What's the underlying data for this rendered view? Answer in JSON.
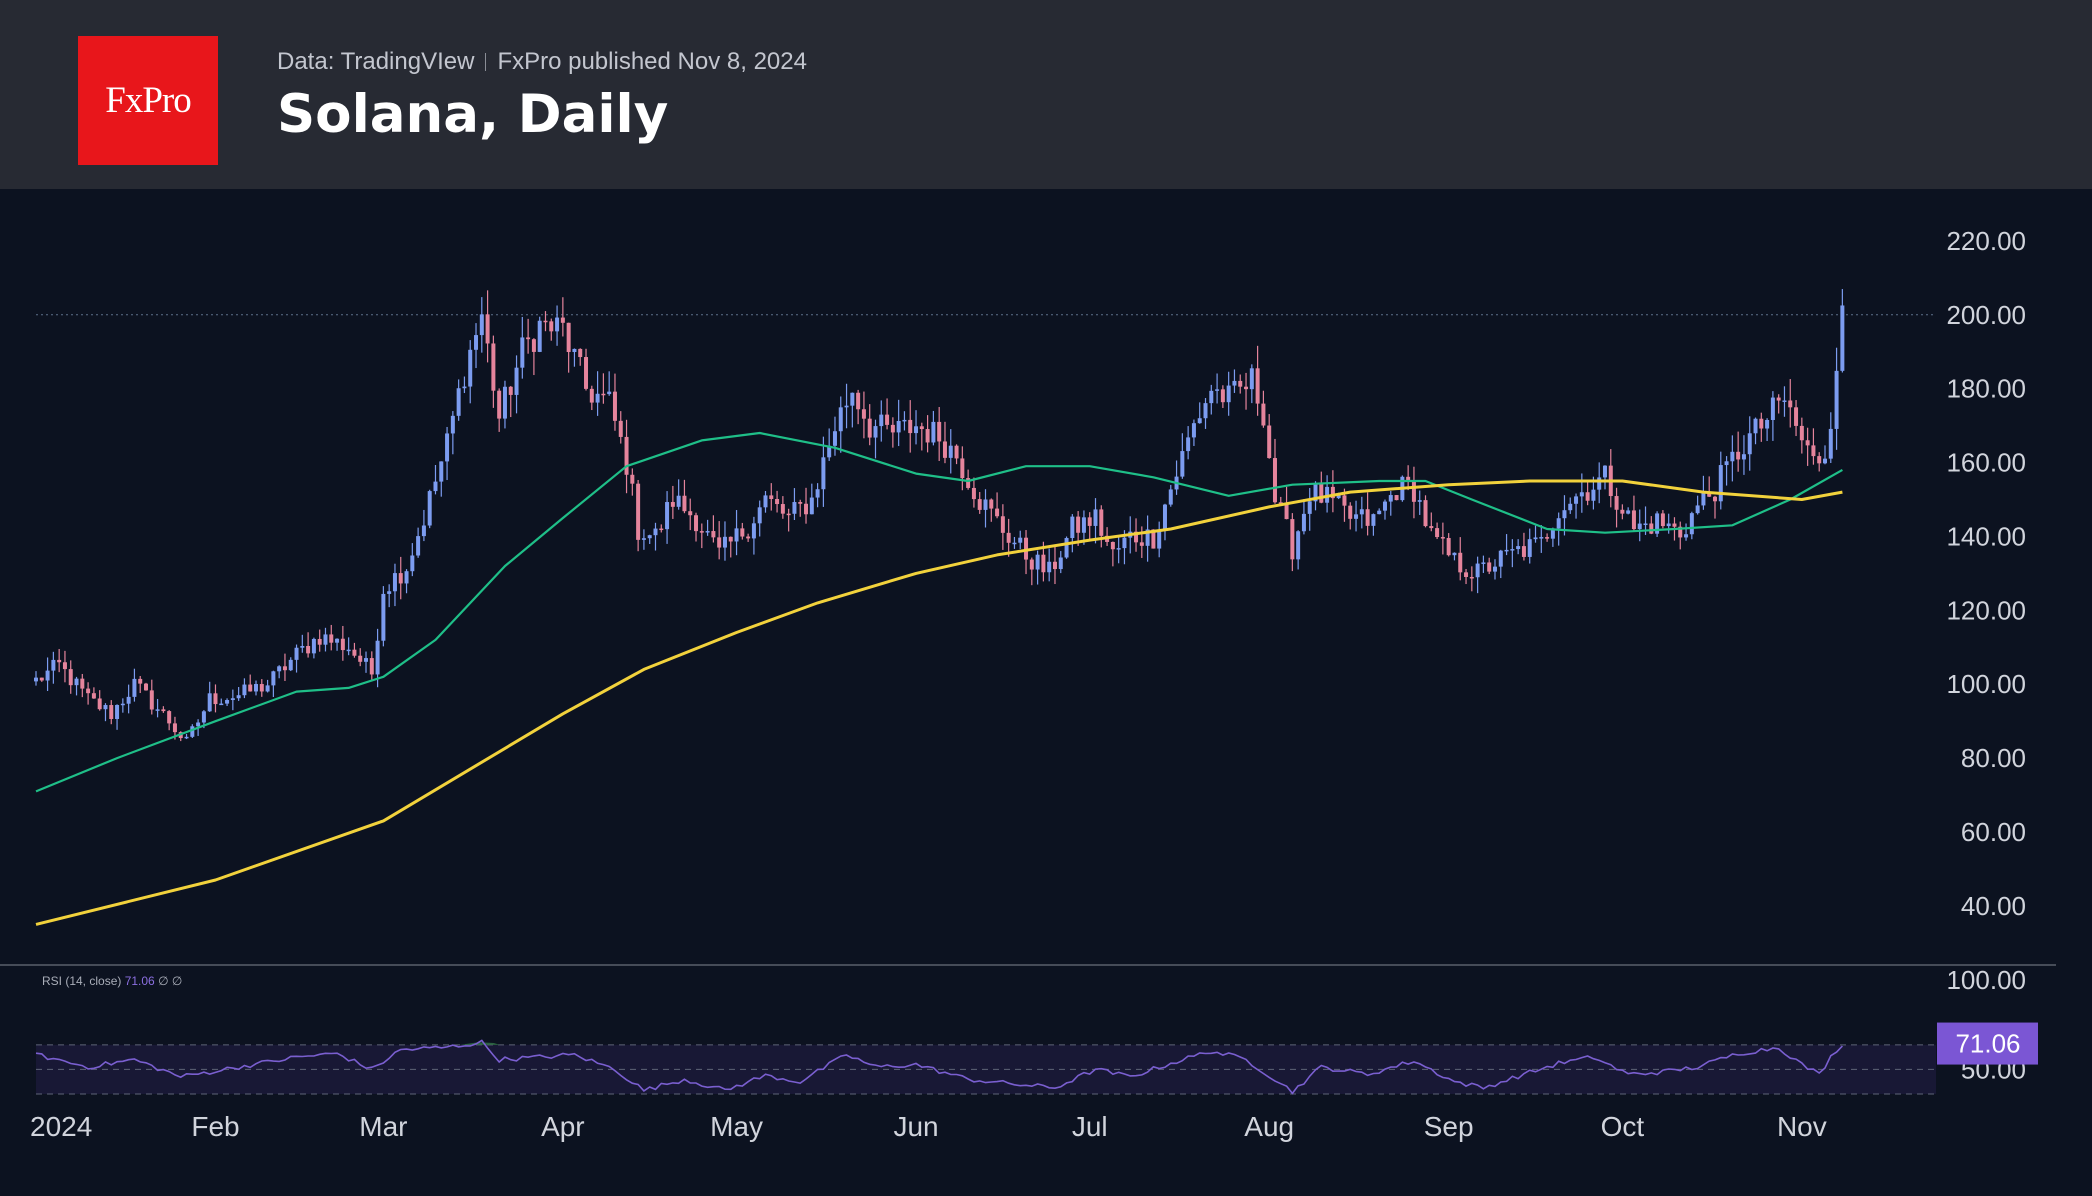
{
  "header": {
    "logo_text": "FxPro",
    "source": "Data: TradingVIew",
    "publisher": "FxPro published Nov 8, 2024",
    "title": "Solana, Daily"
  },
  "colors": {
    "background": "#0c1220",
    "header_bg": "#272a33",
    "logo_bg": "#e8161b",
    "candle_up": "#7c9cf0",
    "candle_down": "#e5849c",
    "ma_green": "#1fbf88",
    "ma_yellow": "#f2d23c",
    "rsi_line": "#7a5fd0",
    "rsi_badge": "#7b56d4",
    "rsi_overbought_fill": "#2f6a44"
  },
  "chart_data": {
    "type": "candlestick",
    "title": "Solana, Daily",
    "price_axis": {
      "ticks": [
        40,
        60,
        80,
        100,
        120,
        140,
        160,
        180,
        200,
        220
      ],
      "tick_labels": [
        "40.00",
        "60.00",
        "80.00",
        "100.00",
        "120.00",
        "140.00",
        "160.00",
        "180.00",
        "200.00",
        "220.00"
      ],
      "range": [
        24,
        227
      ]
    },
    "time_axis": {
      "labels": [
        "2024",
        "Feb",
        "Mar",
        "Apr",
        "May",
        "Jun",
        "Jul",
        "Aug",
        "Sep",
        "Oct",
        "Nov"
      ],
      "dates": [
        "2024-01-01",
        "2024-02-01",
        "2024-03-01",
        "2024-04-01",
        "2024-05-01",
        "2024-06-01",
        "2024-07-01",
        "2024-08-01",
        "2024-09-01",
        "2024-10-01",
        "2024-11-01"
      ],
      "range": [
        "2024-01-01",
        "2024-11-24"
      ]
    },
    "horizontal_line": 200,
    "price_waypoints": [
      [
        "2024-01-01",
        101
      ],
      [
        "2024-01-05",
        105
      ],
      [
        "2024-01-10",
        96
      ],
      [
        "2024-01-14",
        92
      ],
      [
        "2024-01-18",
        100
      ],
      [
        "2024-01-24",
        90
      ],
      [
        "2024-01-27",
        84
      ],
      [
        "2024-01-31",
        96
      ],
      [
        "2024-02-05",
        97
      ],
      [
        "2024-02-10",
        100
      ],
      [
        "2024-02-15",
        108
      ],
      [
        "2024-02-19",
        113
      ],
      [
        "2024-02-24",
        110
      ],
      [
        "2024-02-28",
        103
      ],
      [
        "2024-03-01",
        126
      ],
      [
        "2024-03-05",
        132
      ],
      [
        "2024-03-08",
        145
      ],
      [
        "2024-03-12",
        165
      ],
      [
        "2024-03-15",
        185
      ],
      [
        "2024-03-18",
        200
      ],
      [
        "2024-03-21",
        172
      ],
      [
        "2024-03-25",
        190
      ],
      [
        "2024-03-28",
        197
      ],
      [
        "2024-04-01",
        196
      ],
      [
        "2024-04-05",
        180
      ],
      [
        "2024-04-09",
        176
      ],
      [
        "2024-04-12",
        160
      ],
      [
        "2024-04-14",
        142
      ],
      [
        "2024-04-17",
        140
      ],
      [
        "2024-04-20",
        150
      ],
      [
        "2024-04-24",
        145
      ],
      [
        "2024-04-28",
        135
      ],
      [
        "2024-04-30",
        138
      ],
      [
        "2024-05-03",
        143
      ],
      [
        "2024-05-06",
        150
      ],
      [
        "2024-05-10",
        145
      ],
      [
        "2024-05-14",
        150
      ],
      [
        "2024-05-18",
        170
      ],
      [
        "2024-05-21",
        180
      ],
      [
        "2024-05-24",
        170
      ],
      [
        "2024-05-28",
        168
      ],
      [
        "2024-06-01",
        170
      ],
      [
        "2024-06-05",
        167
      ],
      [
        "2024-06-08",
        162
      ],
      [
        "2024-06-12",
        150
      ],
      [
        "2024-06-16",
        142
      ],
      [
        "2024-06-20",
        135
      ],
      [
        "2024-06-24",
        130
      ],
      [
        "2024-06-28",
        142
      ],
      [
        "2024-07-02",
        145
      ],
      [
        "2024-07-05",
        135
      ],
      [
        "2024-07-08",
        140
      ],
      [
        "2024-07-12",
        140
      ],
      [
        "2024-07-15",
        153
      ],
      [
        "2024-07-19",
        170
      ],
      [
        "2024-07-22",
        180
      ],
      [
        "2024-07-25",
        177
      ],
      [
        "2024-07-29",
        182
      ],
      [
        "2024-07-31",
        174
      ],
      [
        "2024-08-02",
        150
      ],
      [
        "2024-08-05",
        137
      ],
      [
        "2024-08-08",
        152
      ],
      [
        "2024-08-11",
        150
      ],
      [
        "2024-08-15",
        145
      ],
      [
        "2024-08-19",
        144
      ],
      [
        "2024-08-23",
        153
      ],
      [
        "2024-08-26",
        153
      ],
      [
        "2024-08-29",
        140
      ],
      [
        "2024-09-02",
        133
      ],
      [
        "2024-09-06",
        130
      ],
      [
        "2024-09-09",
        133
      ],
      [
        "2024-09-13",
        136
      ],
      [
        "2024-09-17",
        138
      ],
      [
        "2024-09-20",
        148
      ],
      [
        "2024-09-24",
        152
      ],
      [
        "2024-09-28",
        156
      ],
      [
        "2024-10-01",
        148
      ],
      [
        "2024-10-03",
        142
      ],
      [
        "2024-10-07",
        144
      ],
      [
        "2024-10-11",
        141
      ],
      [
        "2024-10-14",
        148
      ],
      [
        "2024-10-17",
        153
      ],
      [
        "2024-10-21",
        163
      ],
      [
        "2024-10-25",
        170
      ],
      [
        "2024-10-29",
        177
      ],
      [
        "2024-11-01",
        166
      ],
      [
        "2024-11-03",
        160
      ],
      [
        "2024-11-05",
        163
      ],
      [
        "2024-11-06",
        173
      ],
      [
        "2024-11-07",
        188
      ],
      [
        "2024-11-08",
        199
      ]
    ],
    "series": [
      {
        "name": "",
        "kind": "moving-average",
        "color": "#1fbf88",
        "points": [
          [
            "2024-01-01",
            71
          ],
          [
            "2024-01-15",
            80
          ],
          [
            "2024-02-01",
            90
          ],
          [
            "2024-02-15",
            98
          ],
          [
            "2024-02-24",
            99
          ],
          [
            "2024-03-01",
            102
          ],
          [
            "2024-03-10",
            112
          ],
          [
            "2024-03-22",
            132
          ],
          [
            "2024-04-01",
            145
          ],
          [
            "2024-04-12",
            159
          ],
          [
            "2024-04-25",
            166
          ],
          [
            "2024-05-05",
            168
          ],
          [
            "2024-05-18",
            164
          ],
          [
            "2024-06-01",
            157
          ],
          [
            "2024-06-10",
            155
          ],
          [
            "2024-06-20",
            159
          ],
          [
            "2024-07-01",
            159
          ],
          [
            "2024-07-12",
            156
          ],
          [
            "2024-07-25",
            151
          ],
          [
            "2024-08-05",
            154
          ],
          [
            "2024-08-20",
            155
          ],
          [
            "2024-08-28",
            155
          ],
          [
            "2024-09-05",
            150
          ],
          [
            "2024-09-18",
            142
          ],
          [
            "2024-09-28",
            141
          ],
          [
            "2024-10-10",
            142
          ],
          [
            "2024-10-20",
            143
          ],
          [
            "2024-10-30",
            150
          ],
          [
            "2024-11-08",
            158
          ]
        ]
      },
      {
        "name": "",
        "kind": "moving-average",
        "color": "#f2d23c",
        "points": [
          [
            "2024-01-01",
            35
          ],
          [
            "2024-02-01",
            47
          ],
          [
            "2024-03-01",
            63
          ],
          [
            "2024-04-01",
            92
          ],
          [
            "2024-04-15",
            104
          ],
          [
            "2024-05-01",
            114
          ],
          [
            "2024-05-15",
            122
          ],
          [
            "2024-06-01",
            130
          ],
          [
            "2024-06-15",
            135
          ],
          [
            "2024-07-01",
            139
          ],
          [
            "2024-07-15",
            142
          ],
          [
            "2024-08-01",
            148
          ],
          [
            "2024-08-15",
            152
          ],
          [
            "2024-09-01",
            154
          ],
          [
            "2024-09-15",
            155
          ],
          [
            "2024-10-01",
            155
          ],
          [
            "2024-10-15",
            152
          ],
          [
            "2024-11-01",
            150
          ],
          [
            "2024-11-08",
            152
          ]
        ]
      }
    ],
    "rsi": {
      "label": "RSI (14, close)",
      "value": 71.06,
      "value_label": "71.06",
      "symbols": "∅ ∅",
      "axis_labels": [
        "100.00",
        "50.00"
      ],
      "range": [
        30,
        100
      ],
      "upper_band": 70,
      "mid_line": 50,
      "lower_band": 30,
      "points": [
        [
          "2024-01-01",
          62
        ],
        [
          "2024-01-10",
          52
        ],
        [
          "2024-01-18",
          58
        ],
        [
          "2024-01-26",
          44
        ],
        [
          "2024-02-05",
          52
        ],
        [
          "2024-02-15",
          60
        ],
        [
          "2024-02-22",
          63
        ],
        [
          "2024-02-28",
          50
        ],
        [
          "2024-03-04",
          66
        ],
        [
          "2024-03-12",
          68
        ],
        [
          "2024-03-18",
          72
        ],
        [
          "2024-03-21",
          58
        ],
        [
          "2024-03-28",
          60
        ],
        [
          "2024-04-03",
          62
        ],
        [
          "2024-04-10",
          50
        ],
        [
          "2024-04-15",
          33
        ],
        [
          "2024-04-22",
          42
        ],
        [
          "2024-04-29",
          33
        ],
        [
          "2024-05-06",
          45
        ],
        [
          "2024-05-12",
          40
        ],
        [
          "2024-05-20",
          62
        ],
        [
          "2024-05-25",
          52
        ],
        [
          "2024-06-01",
          54
        ],
        [
          "2024-06-10",
          42
        ],
        [
          "2024-06-18",
          38
        ],
        [
          "2024-06-25",
          35
        ],
        [
          "2024-07-02",
          50
        ],
        [
          "2024-07-08",
          44
        ],
        [
          "2024-07-15",
          55
        ],
        [
          "2024-07-22",
          65
        ],
        [
          "2024-07-28",
          58
        ],
        [
          "2024-08-02",
          42
        ],
        [
          "2024-08-05",
          32
        ],
        [
          "2024-08-10",
          52
        ],
        [
          "2024-08-18",
          46
        ],
        [
          "2024-08-26",
          57
        ],
        [
          "2024-09-02",
          40
        ],
        [
          "2024-09-07",
          35
        ],
        [
          "2024-09-14",
          46
        ],
        [
          "2024-09-20",
          55
        ],
        [
          "2024-09-26",
          60
        ],
        [
          "2024-10-02",
          46
        ],
        [
          "2024-10-08",
          48
        ],
        [
          "2024-10-14",
          52
        ],
        [
          "2024-10-21",
          63
        ],
        [
          "2024-10-28",
          68
        ],
        [
          "2024-11-01",
          54
        ],
        [
          "2024-11-04",
          46
        ],
        [
          "2024-11-06",
          60
        ],
        [
          "2024-11-08",
          71
        ]
      ]
    }
  }
}
